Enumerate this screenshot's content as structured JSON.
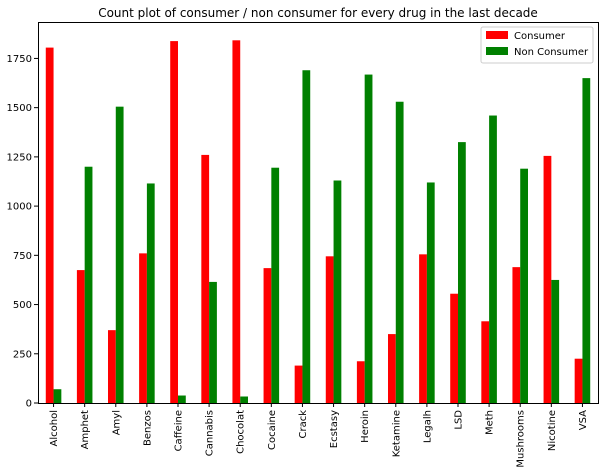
{
  "chart_data": {
    "type": "bar",
    "title": "Count plot of consumer / non consumer for every drug in the last decade",
    "xlabel": "",
    "ylabel": "",
    "ylim": [
      0,
      1935
    ],
    "yticks": [
      0,
      250,
      500,
      750,
      1000,
      1250,
      1500,
      1750
    ],
    "legend_position": "top-right",
    "grid": false,
    "categories": [
      "Alcohol",
      "Amphet",
      "Amyl",
      "Benzos",
      "Caffeine",
      "Cannabis",
      "Chocolat",
      "Cocaine",
      "Crack",
      "Ecstasy",
      "Heroin",
      "Ketamine",
      "Legalh",
      "LSD",
      "Meth",
      "Mushrooms",
      "Nicotine",
      "VSA"
    ],
    "series": [
      {
        "name": "Consumer",
        "color": "#ff0000",
        "values": [
          1805,
          675,
          370,
          760,
          1838,
          1260,
          1842,
          685,
          190,
          745,
          212,
          350,
          755,
          555,
          415,
          690,
          1255,
          225
        ]
      },
      {
        "name": "Non Consumer",
        "color": "#008000",
        "values": [
          70,
          1200,
          1505,
          1115,
          38,
          615,
          33,
          1195,
          1690,
          1130,
          1668,
          1530,
          1120,
          1325,
          1460,
          1190,
          625,
          1650
        ]
      }
    ]
  }
}
